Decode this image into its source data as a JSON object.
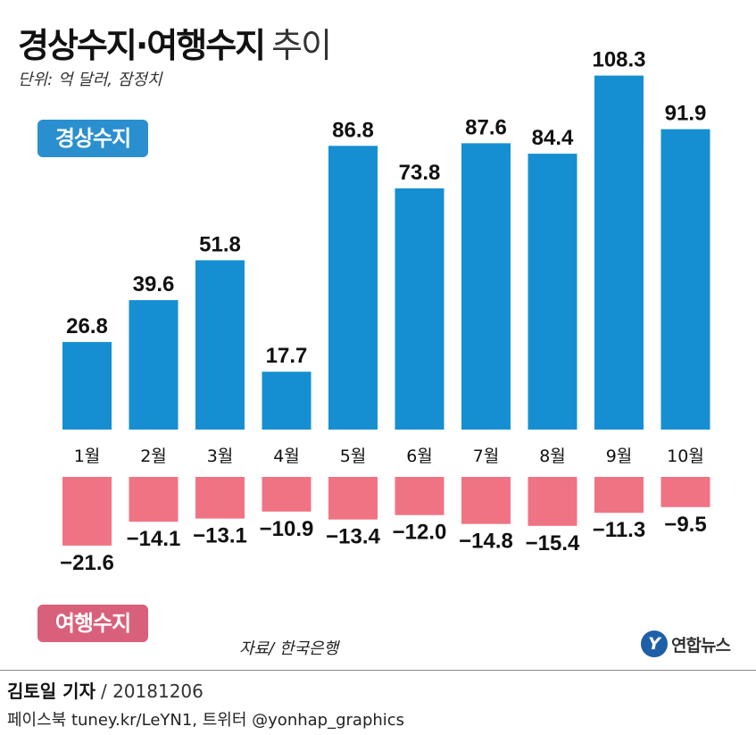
{
  "title": {
    "main": "경상수지·여행수지",
    "light": "추이"
  },
  "unit_note": "단위: 억 달러, 잠정치",
  "legend": {
    "current": "경상수지",
    "travel": "여행수지"
  },
  "source_note": "자료/ 한국은행",
  "logo": {
    "mark": "Y",
    "text": "연합뉴스"
  },
  "byline": {
    "name": "김토일 기자",
    "date": "/ 20181206"
  },
  "social": "페이스북 tuney.kr/LeYN1, 트위터 @yonhap_graphics",
  "colors": {
    "current": "#168fd2",
    "travel": "#f07384"
  },
  "chart_data": {
    "type": "bar",
    "categories": [
      "1월",
      "2월",
      "3월",
      "4월",
      "5월",
      "6월",
      "7월",
      "8월",
      "9월",
      "10월"
    ],
    "series": [
      {
        "name": "경상수지",
        "values": [
          26.8,
          39.6,
          51.8,
          17.7,
          86.8,
          73.8,
          87.6,
          84.4,
          108.3,
          91.9
        ],
        "labels": [
          "26.8",
          "39.6",
          "51.8",
          "17.7",
          "86.8",
          "73.8",
          "87.6",
          "84.4",
          "108.3",
          "91.9"
        ]
      },
      {
        "name": "여행수지",
        "values": [
          -21.6,
          -14.1,
          -13.1,
          -10.9,
          -13.4,
          -12.0,
          -14.8,
          -15.4,
          -11.3,
          -9.5
        ],
        "labels": [
          "−21.6",
          "−14.1",
          "−13.1",
          "−10.9",
          "−13.4",
          "−12.0",
          "−14.8",
          "−15.4",
          "−11.3",
          "−9.5"
        ]
      }
    ],
    "title": "경상수지·여행수지 추이",
    "ylabel": "",
    "grid": false
  }
}
